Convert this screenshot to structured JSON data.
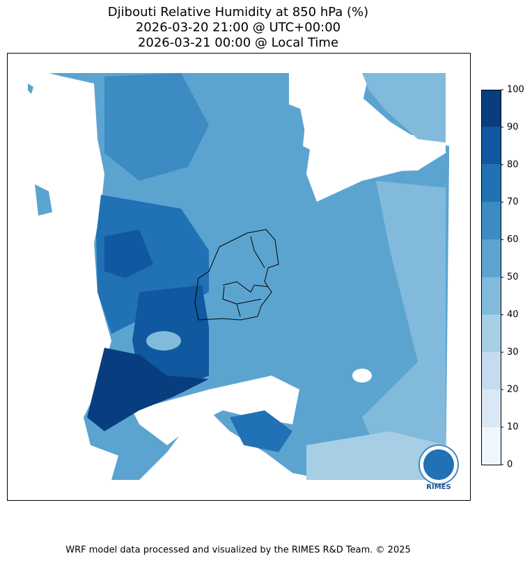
{
  "header": {
    "title": "Djibouti Relative Humidity at 850 hPa (%)",
    "lines": [
      "2026-03-20 21:00 @ UTC+00:00",
      "2026-03-21 00:00 @ Local Time"
    ]
  },
  "colorbar": {
    "ticks": [
      0,
      10,
      20,
      30,
      40,
      50,
      60,
      70,
      80,
      90,
      100
    ],
    "colors": [
      "#eff6fc",
      "#dae8f5",
      "#c6dbef",
      "#a6cee4",
      "#82badb",
      "#5ca4d0",
      "#3d8bc3",
      "#2171b5",
      "#1058a0",
      "#083d7f"
    ]
  },
  "logo": {
    "label": "RIMES"
  },
  "footer": "WRF model data processed and visualized by the RIMES R&D Team. © 2025"
}
